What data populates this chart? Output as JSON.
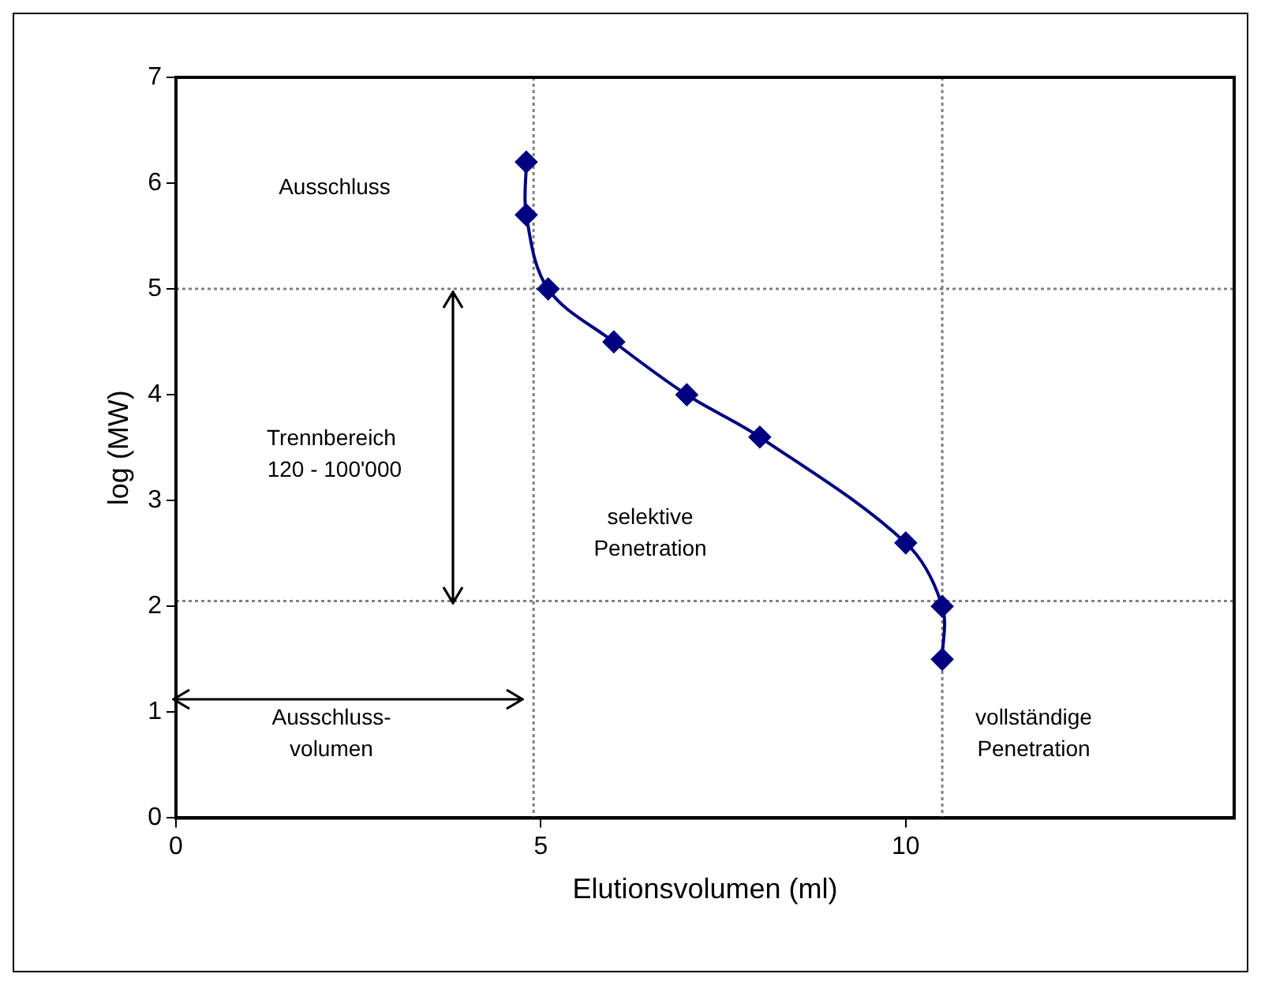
{
  "chart_data": {
    "type": "line",
    "xlabel": "Elutionsvolumen (ml)",
    "ylabel": "log (MW)",
    "x": [
      4.8,
      4.8,
      5.1,
      6,
      7,
      8,
      10,
      10.5,
      10.5
    ],
    "series": [
      {
        "type": "line",
        "color": "#000080",
        "marker": "diamond",
        "values": [
          6.2,
          5.7,
          5.0,
          4.5,
          4.0,
          3.6,
          2.6,
          2.0,
          1.5
        ]
      }
    ],
    "xlim": [
      0,
      14.5
    ],
    "xticks": [
      0,
      5,
      10
    ],
    "ylim": [
      0,
      7
    ],
    "yticks": [
      0,
      1,
      2,
      3,
      4,
      5,
      6,
      7
    ],
    "grid": false,
    "legend": false,
    "ref_lines": [
      {
        "axis": "x",
        "value": 4.9,
        "color": "#808080",
        "line_style": "dotted"
      },
      {
        "axis": "y",
        "value": 5,
        "color": "#808080",
        "line_style": "dotted"
      },
      {
        "axis": "y",
        "value": 2.05,
        "color": "#808080",
        "line_style": "dotted"
      },
      {
        "axis": "x",
        "value": 10.5,
        "color": "#808080",
        "line_style": "dotted"
      }
    ],
    "annotations": [
      "Ausschluss",
      "Trennbereich\n 120 - 100'000",
      "Ausschluss-\nvolumen",
      "selektive\nPenetration",
      "vollständige\nPenetration"
    ]
  }
}
